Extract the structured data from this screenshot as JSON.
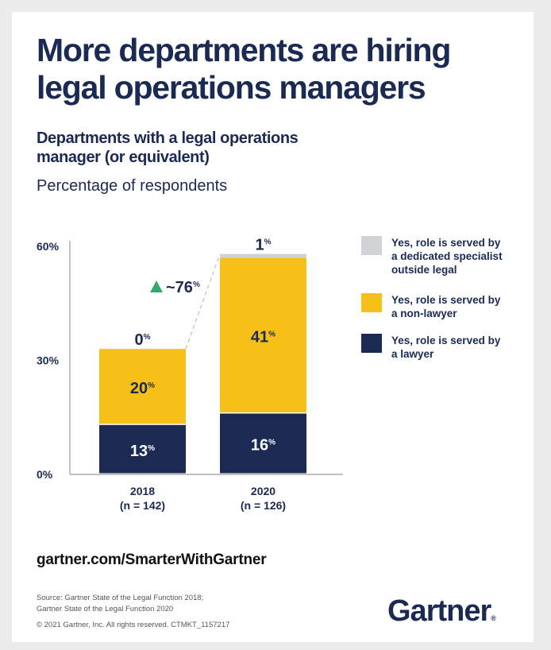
{
  "header": {
    "title_line1": "More departments are hiring",
    "title_line2": "legal operations managers",
    "subtitle_line1": "Departments with a legal operations",
    "subtitle_line2": "manager (or equivalent)",
    "unit": "Percentage of respondents"
  },
  "colors": {
    "navy": "#1b2a52",
    "yellow": "#f6c018",
    "gray": "#d1d2d6",
    "green": "#34a96b",
    "axis": "#9a9a9a"
  },
  "chart_data": {
    "type": "bar",
    "stacked": true,
    "title": "Departments with a legal operations manager (or equivalent)",
    "ylabel": "Percentage of respondents",
    "xlabel": "",
    "ylim": [
      0,
      60
    ],
    "yticks": [
      0,
      30,
      60
    ],
    "ytick_labels": [
      "0%",
      "30%",
      "60%"
    ],
    "categories": [
      "2018",
      "2020"
    ],
    "category_sublabels": [
      "(n = 142)",
      "(n = 126)"
    ],
    "series": [
      {
        "name": "Yes, role is served by a lawyer",
        "color": "#1b2a52",
        "values": [
          13,
          16
        ],
        "labels": [
          "13",
          "16"
        ]
      },
      {
        "name": "Yes, role is served by a non-lawyer",
        "color": "#f6c018",
        "values": [
          20,
          41
        ],
        "labels": [
          "20",
          "41"
        ]
      },
      {
        "name": "Yes, role is served by a dedicated specialist outside legal",
        "color": "#d1d2d6",
        "values": [
          0,
          1
        ],
        "labels": [
          "0",
          "1"
        ]
      }
    ],
    "annotation": {
      "text": "~76",
      "suffix": "%",
      "icon": "up-triangle-icon"
    },
    "grid": false,
    "legend_position": "right"
  },
  "legend": [
    {
      "lines": [
        "Yes, role is served by",
        "a dedicated specialist",
        "outside legal"
      ],
      "color": "#d1d2d6"
    },
    {
      "lines": [
        "Yes, role is served by",
        "a non-lawyer"
      ],
      "color": "#f6c018"
    },
    {
      "lines": [
        "Yes, role is served by",
        "a lawyer"
      ],
      "color": "#1b2a52"
    }
  ],
  "footer": {
    "url": "gartner.com/SmarterWithGartner",
    "source_line1": "Source: Gartner State of the Legal Function 2018;",
    "source_line2": "Gartner State of the Legal Function 2020",
    "copyright": "© 2021 Gartner, Inc. All rights reserved. CTMKT_1157217",
    "logo": "Gartner",
    "logo_mark": "®"
  }
}
